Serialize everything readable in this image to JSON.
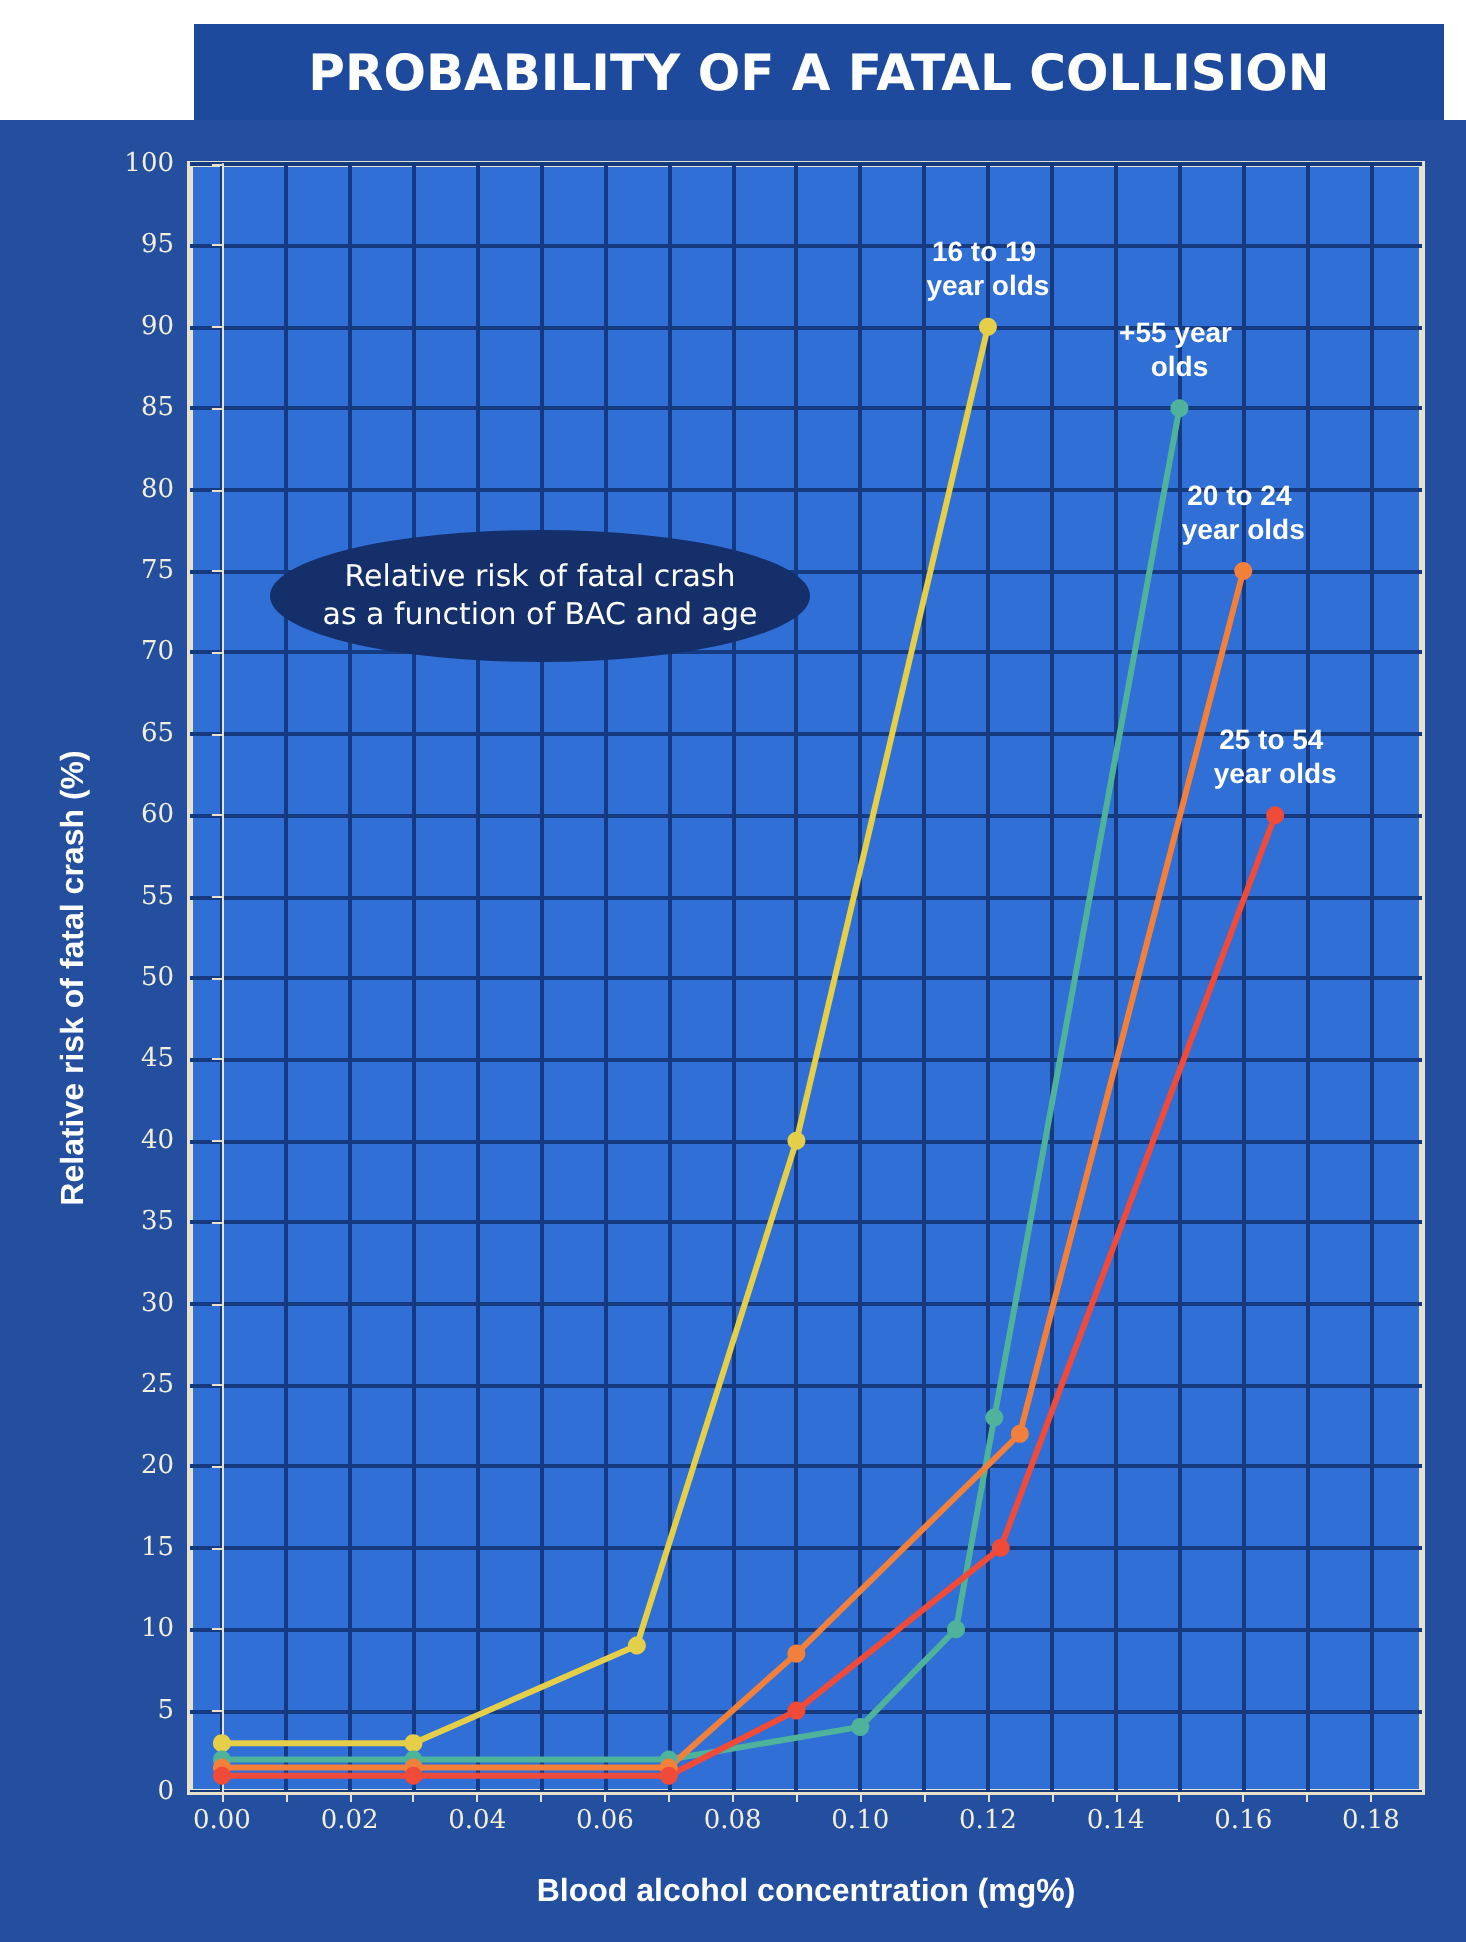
{
  "chart_data": {
    "type": "line",
    "title": "PROBABILITY OF A FATAL COLLISION",
    "xlabel": "Blood alcohol concentration (mg%)",
    "ylabel": "Relative risk of fatal crash (%)",
    "annotations": [
      "Relative risk of fatal crash\nas a function of BAC and age"
    ],
    "series": [
      {
        "name": "16 to 19 year olds",
        "color": "#e6cf48",
        "x": [
          0,
          0.03,
          0.065,
          0.09,
          0.12
        ],
        "values": [
          3,
          3,
          9,
          40,
          90
        ]
      },
      {
        "name": "+55 year olds",
        "color": "#4fb39c",
        "x": [
          0,
          0.03,
          0.07,
          0.1,
          0.115,
          0.121,
          0.15
        ],
        "values": [
          2,
          2,
          2,
          4,
          10,
          23,
          85
        ]
      },
      {
        "name": "20 to 24 year olds",
        "color": "#f2803a",
        "x": [
          0,
          0.03,
          0.07,
          0.09,
          0.125,
          0.16
        ],
        "values": [
          1.5,
          1.5,
          1.5,
          8.5,
          22,
          75
        ]
      },
      {
        "name": "25 to 54 year olds",
        "color": "#f04a38",
        "x": [
          0,
          0.03,
          0.07,
          0.09,
          0.122,
          0.165
        ],
        "values": [
          1,
          1,
          1,
          5,
          15,
          60
        ]
      }
    ],
    "xlim": [
      -0.005,
      0.188
    ],
    "xticks": [
      {
        "value": 0,
        "label": "0.00"
      },
      {
        "value": 0.01,
        "label": null
      },
      {
        "value": 0.02,
        "label": "0.02"
      },
      {
        "value": 0.03,
        "label": null
      },
      {
        "value": 0.04,
        "label": "0.04"
      },
      {
        "value": 0.05,
        "label": null
      },
      {
        "value": 0.06,
        "label": "0.06"
      },
      {
        "value": 0.07,
        "label": null
      },
      {
        "value": 0.08,
        "label": "0.08"
      },
      {
        "value": 0.09,
        "label": null
      },
      {
        "value": 0.1,
        "label": "0.10"
      },
      {
        "value": 0.11,
        "label": null
      },
      {
        "value": 0.12,
        "label": "0.12"
      },
      {
        "value": 0.13,
        "label": null
      },
      {
        "value": 0.14,
        "label": "0.14"
      },
      {
        "value": 0.15,
        "label": null
      },
      {
        "value": 0.16,
        "label": "0.16"
      },
      {
        "value": 0.17,
        "label": null
      },
      {
        "value": 0.18,
        "label": "0.18"
      }
    ],
    "ylim": [
      0,
      100
    ],
    "yticks": [
      0,
      5,
      10,
      15,
      20,
      25,
      30,
      35,
      40,
      45,
      50,
      55,
      60,
      65,
      70,
      75,
      80,
      85,
      90,
      95,
      100
    ],
    "grid": true,
    "legend": false,
    "marker": "circle",
    "line_style": "solid"
  }
}
